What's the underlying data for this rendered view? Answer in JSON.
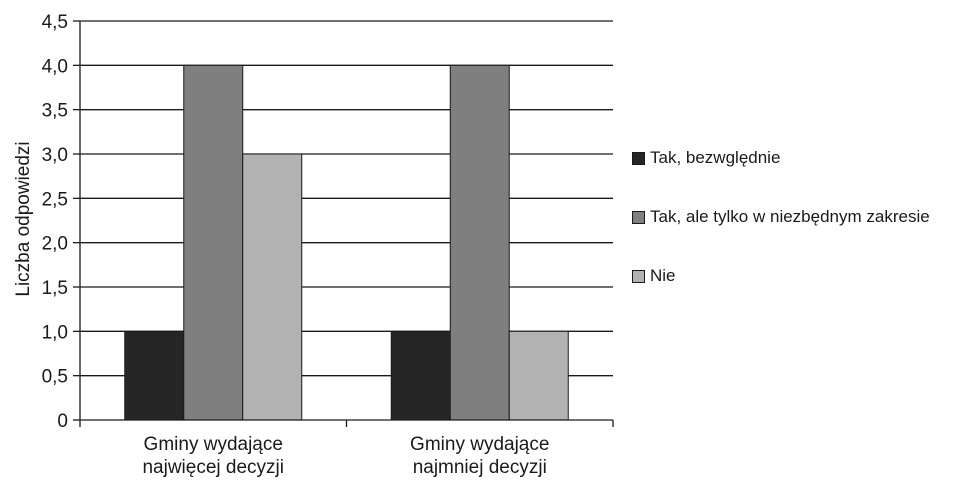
{
  "chart_data": {
    "type": "bar",
    "ylabel": "Liczba odpowiedzi",
    "xlabel": "",
    "ylim": [
      0,
      4.5
    ],
    "yticks": [
      "0",
      "0,5",
      "1,0",
      "1,5",
      "2,0",
      "2,5",
      "3,0",
      "3,5",
      "4,0",
      "4,5"
    ],
    "categories": [
      [
        "Gminy wydające",
        "najwięcej decyzji"
      ],
      [
        "Gminy wydające",
        "najmniej decyzji"
      ]
    ],
    "series": [
      {
        "name": "Tak, bezwględnie",
        "values": [
          1,
          1
        ],
        "color": "#262626"
      },
      {
        "name": "Tak, ale tylko w niezbędnym zakresie",
        "values": [
          4,
          4
        ],
        "color": "#7f7f7f"
      },
      {
        "name": "Nie",
        "values": [
          3,
          1
        ],
        "color": "#b2b2b2"
      }
    ],
    "grid": true,
    "legend_position": "right"
  }
}
